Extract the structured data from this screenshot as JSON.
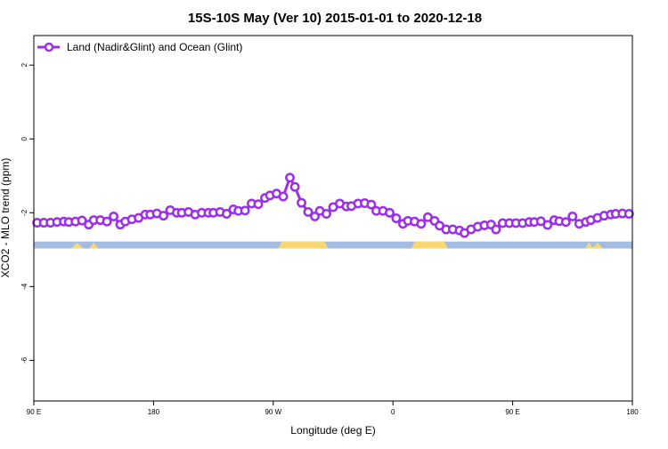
{
  "chart_data": {
    "type": "line",
    "title": "15S-10S May (Ver 10)   2015-01-01 to 2020-12-18",
    "xlabel": "Longitude (deg E)",
    "ylabel": "XCO2 - MLO trend (ppm)",
    "xlim": [
      90,
      450
    ],
    "ylim": [
      -7.1,
      2.8
    ],
    "x_ticks": [
      {
        "value": 90,
        "label": "90 E"
      },
      {
        "value": 162,
        "label": "180"
      },
      {
        "value": 234,
        "label": "90 W"
      },
      {
        "value": 306,
        "label": "0"
      },
      {
        "value": 378,
        "label": "90 E"
      },
      {
        "value": 450,
        "label": "180"
      }
    ],
    "y_ticks": [
      {
        "value": 2,
        "label": "2"
      },
      {
        "value": 0,
        "label": "0"
      },
      {
        "value": -2,
        "label": "-2"
      },
      {
        "value": -4,
        "label": "-4"
      },
      {
        "value": -6,
        "label": "-6"
      }
    ],
    "grid": false,
    "legend_position": "top-left",
    "series": [
      {
        "name": "Land (Nadir&Glint) and Ocean (Glint)",
        "color": "#9b30e8",
        "marker": "open-circle",
        "x": [
          92,
          96,
          100,
          104,
          108,
          111,
          115,
          119,
          123,
          126,
          130,
          134,
          138,
          142,
          145,
          149,
          153,
          157,
          160,
          164,
          168,
          172,
          176,
          179,
          183,
          187,
          191,
          195,
          198,
          202,
          206,
          210,
          213,
          217,
          221,
          225,
          229,
          232,
          236,
          240,
          244,
          247,
          251,
          255,
          259,
          262,
          266,
          270,
          274,
          278,
          281,
          285,
          289,
          293,
          296,
          300,
          304,
          308,
          312,
          315,
          319,
          323,
          327,
          331,
          334,
          338,
          342,
          346,
          349,
          353,
          357,
          361,
          365,
          368,
          372,
          376,
          380,
          384,
          388,
          391,
          395,
          399,
          403,
          406,
          410,
          414,
          418,
          422,
          425,
          429,
          433,
          437,
          440,
          444,
          448
        ],
        "y": [
          -2.27,
          -2.27,
          -2.27,
          -2.25,
          -2.24,
          -2.25,
          -2.24,
          -2.21,
          -2.32,
          -2.2,
          -2.2,
          -2.24,
          -2.1,
          -2.32,
          -2.24,
          -2.18,
          -2.14,
          -2.05,
          -2.05,
          -2.02,
          -2.08,
          -1.93,
          -2.0,
          -2.0,
          -1.98,
          -2.05,
          -2.0,
          -2.0,
          -2.0,
          -1.98,
          -2.03,
          -1.91,
          -1.95,
          -1.94,
          -1.75,
          -1.77,
          -1.6,
          -1.53,
          -1.48,
          -1.56,
          -1.05,
          -1.3,
          -1.73,
          -1.98,
          -2.1,
          -1.95,
          -2.03,
          -1.85,
          -1.75,
          -1.83,
          -1.82,
          -1.75,
          -1.74,
          -1.78,
          -1.95,
          -1.95,
          -2.0,
          -2.15,
          -2.3,
          -2.22,
          -2.24,
          -2.3,
          -2.12,
          -2.22,
          -2.35,
          -2.45,
          -2.45,
          -2.48,
          -2.55,
          -2.45,
          -2.38,
          -2.34,
          -2.32,
          -2.45,
          -2.28,
          -2.28,
          -2.28,
          -2.28,
          -2.25,
          -2.25,
          -2.23,
          -2.33,
          -2.2,
          -2.23,
          -2.25,
          -2.1,
          -2.3,
          -2.25,
          -2.2,
          -2.14,
          -2.08,
          -2.05,
          -2.03,
          -2.02,
          -2.03
        ]
      }
    ],
    "surface_band": {
      "y_top": -2.78,
      "y_bottom": -2.97,
      "ocean_color": "#a3bcdf",
      "land_color": "#f8d775",
      "land_segments": [
        [
          237,
          267
        ],
        [
          317,
          339
        ]
      ],
      "land_spikes": [
        [
          116,
          2.2
        ],
        [
          126,
          1.6
        ],
        [
          424,
          1.6
        ],
        [
          429,
          2.0
        ]
      ]
    }
  }
}
